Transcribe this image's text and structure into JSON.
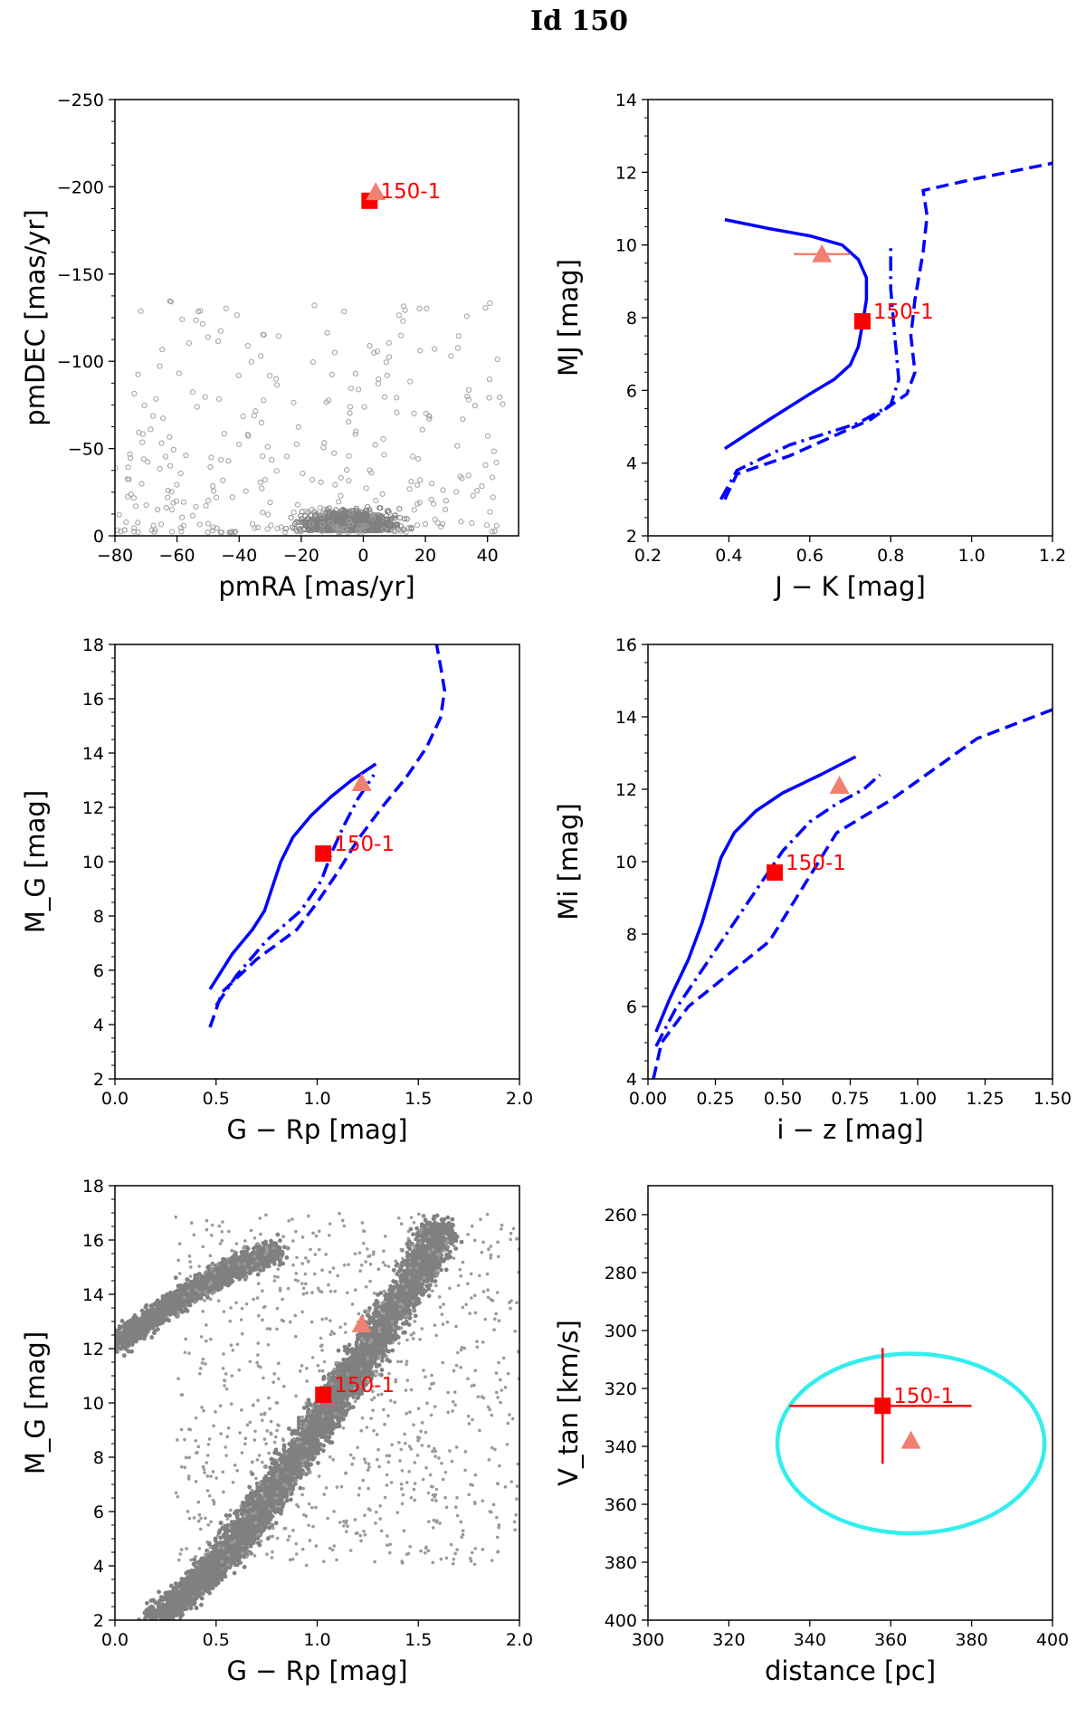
{
  "title": "Id 150",
  "chart_data": [
    {
      "id": "pm",
      "type": "scatter",
      "xlabel": "pmRA [mas/yr]",
      "ylabel": "pmDEC [mas/yr]",
      "xlim": [
        -80,
        50
      ],
      "ylim": [
        -250,
        0
      ],
      "xticks": [
        -80,
        -60,
        -40,
        -20,
        0,
        20,
        40
      ],
      "xtick_labels": [
        "−80",
        "−60",
        "−40",
        "−20",
        "0",
        "20",
        "40"
      ],
      "yticks": [
        0,
        -50,
        -100,
        -150,
        -200,
        -250
      ],
      "ytick_labels": [
        "0",
        "−50",
        "−100",
        "−150",
        "−200",
        "−250"
      ],
      "background": {
        "kind": "field stars (open circles)",
        "color": "#808080",
        "center": [
          -5,
          -10
        ]
      },
      "points": [
        {
          "name": "150-1",
          "marker": "square",
          "color": "#ff0000",
          "x": 2,
          "y": -192,
          "label": "150-1"
        },
        {
          "name": "companion",
          "marker": "triangle",
          "color": "#f08070",
          "x": 4,
          "y": -197
        }
      ]
    },
    {
      "id": "jk",
      "type": "line",
      "xlabel": "J − K [mag]",
      "ylabel": "MJ [mag]",
      "xlim": [
        0.2,
        1.2
      ],
      "ylim": [
        14,
        2
      ],
      "xticks": [
        0.2,
        0.4,
        0.6,
        0.8,
        1.0,
        1.2
      ],
      "xtick_labels": [
        "0.2",
        "0.4",
        "0.6",
        "0.8",
        "1.0",
        "1.2"
      ],
      "yticks": [
        2,
        4,
        6,
        8,
        10,
        12,
        14
      ],
      "ytick_labels": [
        "2",
        "4",
        "6",
        "8",
        "10",
        "12",
        "14"
      ],
      "series": [
        {
          "name": "solid",
          "dash": "solid",
          "color": "#0000ff",
          "x": [
            0.39,
            0.5,
            0.6,
            0.66,
            0.7,
            0.72,
            0.73,
            0.74,
            0.74,
            0.72,
            0.68,
            0.6,
            0.5,
            0.39
          ],
          "y": [
            4.4,
            5.2,
            5.9,
            6.3,
            6.7,
            7.2,
            7.8,
            8.5,
            9.1,
            9.6,
            10.0,
            10.25,
            10.45,
            10.7
          ]
        },
        {
          "name": "dashdot",
          "dash": "dashdot",
          "color": "#0000ff",
          "x": [
            0.38,
            0.42,
            0.55,
            0.72,
            0.8,
            0.82,
            0.81,
            0.8,
            0.8
          ],
          "y": [
            3.0,
            3.8,
            4.5,
            5.1,
            5.6,
            6.3,
            7.5,
            8.8,
            10.0
          ]
        },
        {
          "name": "dashed",
          "dash": "dashed",
          "color": "#0000ff",
          "x": [
            0.39,
            0.42,
            0.55,
            0.75,
            0.84,
            0.86,
            0.85,
            0.86,
            0.88,
            0.89,
            0.88,
            1.0,
            1.2
          ],
          "y": [
            3.0,
            3.7,
            4.2,
            5.2,
            5.9,
            6.5,
            7.5,
            8.5,
            9.8,
            10.8,
            11.5,
            11.8,
            12.25
          ]
        }
      ],
      "points": [
        {
          "name": "150-1",
          "marker": "square",
          "color": "#ff0000",
          "x": 0.73,
          "y": 7.9,
          "label": "150-1"
        },
        {
          "name": "companion",
          "marker": "triangle",
          "color": "#f08070",
          "x": 0.63,
          "y": 9.75,
          "xerr": 0.07
        }
      ]
    },
    {
      "id": "grp",
      "type": "line",
      "xlabel": "G − Rp [mag]",
      "ylabel": "M_G [mag]",
      "xlim": [
        0.0,
        2.0
      ],
      "ylim": [
        18,
        2
      ],
      "xticks": [
        0.0,
        0.5,
        1.0,
        1.5,
        2.0
      ],
      "xtick_labels": [
        "0.0",
        "0.5",
        "1.0",
        "1.5",
        "2.0"
      ],
      "yticks": [
        2,
        4,
        6,
        8,
        10,
        12,
        14,
        16,
        18
      ],
      "ytick_labels": [
        "2",
        "4",
        "6",
        "8",
        "10",
        "12",
        "14",
        "16",
        "18"
      ],
      "series": [
        {
          "name": "solid",
          "dash": "solid",
          "color": "#0000ff",
          "x": [
            0.47,
            0.58,
            0.68,
            0.74,
            0.78,
            0.82,
            0.88,
            0.97,
            1.07,
            1.17,
            1.29
          ],
          "y": [
            5.3,
            6.6,
            7.5,
            8.2,
            9.1,
            10.0,
            10.9,
            11.7,
            12.4,
            13.0,
            13.6
          ]
        },
        {
          "name": "dashdot",
          "dash": "dashdot",
          "color": "#0000ff",
          "x": [
            0.5,
            0.6,
            0.75,
            0.92,
            1.02,
            1.07,
            1.13,
            1.2,
            1.28
          ],
          "y": [
            4.7,
            5.8,
            7.1,
            8.2,
            9.3,
            10.3,
            11.3,
            12.3,
            13.2
          ]
        },
        {
          "name": "dashed",
          "dash": "dashed",
          "color": "#0000ff",
          "x": [
            0.47,
            0.53,
            0.7,
            0.9,
            1.0,
            1.1,
            1.2,
            1.32,
            1.44,
            1.54,
            1.61,
            1.63,
            1.61,
            1.59
          ],
          "y": [
            3.9,
            5.2,
            6.4,
            7.5,
            8.5,
            9.6,
            10.8,
            12.0,
            13.1,
            14.2,
            15.3,
            16.3,
            17.2,
            18.0
          ]
        }
      ],
      "points": [
        {
          "name": "150-1",
          "marker": "square",
          "color": "#ff0000",
          "x": 1.03,
          "y": 10.3,
          "label": "150-1"
        },
        {
          "name": "companion",
          "marker": "triangle",
          "color": "#f08070",
          "x": 1.22,
          "y": 12.9
        }
      ]
    },
    {
      "id": "iz",
      "type": "line",
      "xlabel": "i − z [mag]",
      "ylabel": "Mi [mag]",
      "xlim": [
        0.0,
        1.5
      ],
      "ylim": [
        16,
        4
      ],
      "xticks": [
        0.0,
        0.25,
        0.5,
        0.75,
        1.0,
        1.25,
        1.5
      ],
      "xtick_labels": [
        "0.00",
        "0.25",
        "0.50",
        "0.75",
        "1.00",
        "1.25",
        "1.50"
      ],
      "yticks": [
        4,
        6,
        8,
        10,
        12,
        14,
        16
      ],
      "ytick_labels": [
        "4",
        "6",
        "8",
        "10",
        "12",
        "14",
        "16"
      ],
      "series": [
        {
          "name": "solid",
          "dash": "solid",
          "color": "#0000ff",
          "x": [
            0.03,
            0.08,
            0.15,
            0.2,
            0.24,
            0.27,
            0.32,
            0.4,
            0.5,
            0.64,
            0.77
          ],
          "y": [
            5.3,
            6.2,
            7.3,
            8.3,
            9.3,
            10.1,
            10.8,
            11.4,
            11.9,
            12.4,
            12.9
          ]
        },
        {
          "name": "dashdot",
          "dash": "dashdot",
          "color": "#0000ff",
          "x": [
            0.03,
            0.1,
            0.2,
            0.3,
            0.4,
            0.5,
            0.6,
            0.7,
            0.8,
            0.86
          ],
          "y": [
            4.9,
            5.9,
            7.0,
            8.1,
            9.2,
            10.3,
            11.1,
            11.6,
            12.0,
            12.4
          ]
        },
        {
          "name": "dashed",
          "dash": "dashed",
          "color": "#0000ff",
          "x": [
            0.02,
            0.05,
            0.15,
            0.3,
            0.45,
            0.55,
            0.7,
            0.9,
            1.22,
            1.5
          ],
          "y": [
            4.0,
            5.0,
            6.0,
            6.9,
            7.8,
            9.0,
            10.8,
            11.7,
            13.4,
            14.2
          ]
        }
      ],
      "points": [
        {
          "name": "150-1",
          "marker": "square",
          "color": "#ff0000",
          "x": 0.47,
          "y": 9.7,
          "label": "150-1"
        },
        {
          "name": "companion",
          "marker": "triangle",
          "color": "#f08070",
          "x": 0.71,
          "y": 12.1
        }
      ]
    },
    {
      "id": "cmd",
      "type": "scatter",
      "xlabel": "G − Rp [mag]",
      "ylabel": "M_G [mag]",
      "xlim": [
        0.0,
        2.0
      ],
      "ylim": [
        18,
        2
      ],
      "xticks": [
        0.0,
        0.5,
        1.0,
        1.5,
        2.0
      ],
      "xtick_labels": [
        "0.0",
        "0.5",
        "1.0",
        "1.5",
        "2.0"
      ],
      "yticks": [
        2,
        4,
        6,
        8,
        10,
        12,
        14,
        16,
        18
      ],
      "ytick_labels": [
        "2",
        "4",
        "6",
        "8",
        "10",
        "12",
        "14",
        "16",
        "18"
      ],
      "background": {
        "kind": "main sequence and white dwarf field stars",
        "color": "#808080",
        "main_sequence": {
          "x": [
            0.2,
            0.5,
            0.7,
            0.9,
            1.1,
            1.3,
            1.5,
            1.6
          ],
          "y": [
            2.0,
            4.0,
            5.8,
            8.0,
            10.2,
            12.5,
            14.8,
            16.5
          ]
        },
        "white_dwarfs": {
          "x": [
            0.0,
            0.2,
            0.4,
            0.6,
            0.8
          ],
          "y": [
            12.2,
            13.2,
            14.2,
            15.0,
            15.6
          ]
        }
      },
      "points": [
        {
          "name": "150-1",
          "marker": "square",
          "color": "#ff0000",
          "x": 1.03,
          "y": 10.3,
          "label": "150-1"
        },
        {
          "name": "companion",
          "marker": "triangle",
          "color": "#f08070",
          "x": 1.22,
          "y": 12.9
        }
      ]
    },
    {
      "id": "vtan",
      "type": "scatter",
      "xlabel": "distance [pc]",
      "ylabel": "V_tan [km/s]",
      "xlim": [
        300,
        400
      ],
      "ylim": [
        250,
        400
      ],
      "xticks": [
        300,
        320,
        340,
        360,
        380,
        400
      ],
      "xtick_labels": [
        "300",
        "320",
        "340",
        "360",
        "380",
        "400"
      ],
      "yticks": [
        260,
        280,
        300,
        320,
        340,
        360,
        380,
        400
      ],
      "ytick_labels": [
        "260",
        "280",
        "300",
        "320",
        "340",
        "360",
        "380",
        "400"
      ],
      "ellipse": {
        "color": "#33eeee",
        "center": [
          365,
          339
        ],
        "rx": 33,
        "ry": 31
      },
      "points": [
        {
          "name": "150-1",
          "marker": "square",
          "color": "#ff0000",
          "x": 358,
          "y": 326,
          "xerr": [
            23,
            22
          ],
          "yerr": 20,
          "label": "150-1"
        },
        {
          "name": "companion",
          "marker": "triangle",
          "color": "#f08070",
          "x": 365,
          "y": 338
        }
      ]
    }
  ]
}
